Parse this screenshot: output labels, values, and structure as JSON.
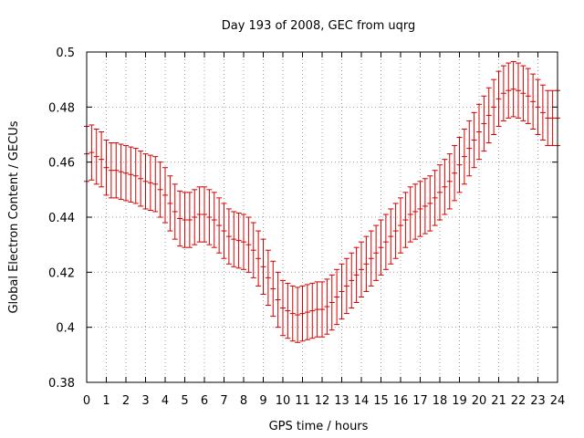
{
  "chart_data": {
    "type": "scatter",
    "title": "Day 193 of 2008, GEC from uqrg",
    "xlabel": "GPS time / hours",
    "ylabel": "Global Electron Content / GECUs",
    "xlim": [
      0,
      24
    ],
    "ylim": [
      0.38,
      0.5
    ],
    "xticks": [
      "0",
      "1",
      "2",
      "3",
      "4",
      "5",
      "6",
      "7",
      "8",
      "9",
      "10",
      "11",
      "12",
      "13",
      "14",
      "15",
      "16",
      "17",
      "18",
      "19",
      "20",
      "21",
      "22",
      "23",
      "24"
    ],
    "yticks": [
      "0.38",
      "0.4",
      "0.42",
      "0.44",
      "0.46",
      "0.48",
      "0.5"
    ],
    "grid": true,
    "error": 0.01,
    "color": "#d00000",
    "series": [
      {
        "x": [
          0,
          0.25,
          0.5,
          0.75,
          1,
          1.25,
          1.5,
          1.75,
          2,
          2.25,
          2.5,
          2.75,
          3,
          3.25,
          3.5,
          3.75,
          4,
          4.25,
          4.5,
          4.75,
          5,
          5.25,
          5.5,
          5.75,
          6,
          6.25,
          6.5,
          6.75,
          7,
          7.25,
          7.5,
          7.75,
          8,
          8.25,
          8.5,
          8.75,
          9,
          9.25,
          9.5,
          9.75,
          10,
          10.25,
          10.5,
          10.75,
          11,
          11.25,
          11.5,
          11.75,
          12,
          12.25,
          12.5,
          12.75,
          13,
          13.25,
          13.5,
          13.75,
          14,
          14.25,
          14.5,
          14.75,
          15,
          15.25,
          15.5,
          15.75,
          16,
          16.25,
          16.5,
          16.75,
          17,
          17.25,
          17.5,
          17.75,
          18,
          18.25,
          18.5,
          18.75,
          19,
          19.25,
          19.5,
          19.75,
          20,
          20.25,
          20.5,
          20.75,
          21,
          21.25,
          21.5,
          21.75,
          22,
          22.25,
          22.5,
          22.75,
          23,
          23.25,
          23.5,
          23.75,
          24
        ],
        "y": [
          0.463,
          0.4635,
          0.462,
          0.461,
          0.458,
          0.457,
          0.457,
          0.4565,
          0.456,
          0.4555,
          0.455,
          0.454,
          0.453,
          0.4525,
          0.452,
          0.45,
          0.448,
          0.445,
          0.442,
          0.4395,
          0.439,
          0.439,
          0.44,
          0.441,
          0.441,
          0.44,
          0.439,
          0.437,
          0.435,
          0.433,
          0.432,
          0.4315,
          0.431,
          0.43,
          0.428,
          0.425,
          0.422,
          0.418,
          0.414,
          0.41,
          0.407,
          0.406,
          0.405,
          0.4045,
          0.405,
          0.4055,
          0.406,
          0.4065,
          0.4065,
          0.4075,
          0.409,
          0.411,
          0.413,
          0.415,
          0.417,
          0.419,
          0.421,
          0.423,
          0.425,
          0.427,
          0.429,
          0.431,
          0.433,
          0.435,
          0.437,
          0.439,
          0.441,
          0.442,
          0.443,
          0.444,
          0.445,
          0.447,
          0.449,
          0.451,
          0.453,
          0.456,
          0.459,
          0.462,
          0.465,
          0.468,
          0.471,
          0.474,
          0.477,
          0.48,
          0.483,
          0.485,
          0.486,
          0.4865,
          0.486,
          0.485,
          0.484,
          0.482,
          0.48,
          0.478,
          0.476,
          0.476,
          0.476
        ]
      }
    ]
  }
}
